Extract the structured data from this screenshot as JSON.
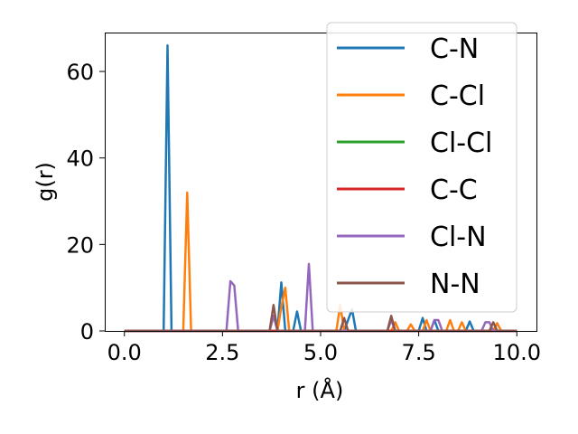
{
  "chart_data": {
    "type": "line",
    "xlabel": "r (Å)",
    "ylabel": "g(r)",
    "xlim": [
      -0.5,
      10.5
    ],
    "ylim": [
      0,
      69
    ],
    "xticks": [
      0.0,
      2.5,
      5.0,
      7.5,
      10.0
    ],
    "xtick_labels": [
      "0.0",
      "2.5",
      "5.0",
      "7.5",
      "10.0"
    ],
    "yticks": [
      0,
      20,
      40,
      60
    ],
    "ytick_labels": [
      "0",
      "20",
      "40",
      "60"
    ],
    "grid": false,
    "legend_position": "top-right",
    "series": [
      {
        "name": "C-N",
        "color": "#1f77b4",
        "points": [
          [
            0,
            0
          ],
          [
            1.0,
            0
          ],
          [
            1.1,
            66
          ],
          [
            1.2,
            0
          ],
          [
            3.9,
            0
          ],
          [
            4.0,
            11.2
          ],
          [
            4.1,
            0
          ],
          [
            4.3,
            0
          ],
          [
            4.4,
            4.5
          ],
          [
            4.5,
            0
          ],
          [
            5.6,
            0
          ],
          [
            5.7,
            2.5
          ],
          [
            5.8,
            5.0
          ],
          [
            5.9,
            0
          ],
          [
            7.5,
            0
          ],
          [
            7.6,
            3.0
          ],
          [
            7.7,
            0
          ],
          [
            7.8,
            0
          ],
          [
            7.9,
            2.5
          ],
          [
            8.0,
            0
          ],
          [
            8.7,
            0
          ],
          [
            8.8,
            2.2
          ],
          [
            8.9,
            0
          ],
          [
            10.0,
            0
          ]
        ]
      },
      {
        "name": "C-Cl",
        "color": "#ff7f0e",
        "points": [
          [
            0,
            0
          ],
          [
            1.5,
            0
          ],
          [
            1.6,
            32
          ],
          [
            1.7,
            0
          ],
          [
            3.9,
            0
          ],
          [
            4.0,
            5.5
          ],
          [
            4.1,
            10
          ],
          [
            4.2,
            0
          ],
          [
            5.4,
            0
          ],
          [
            5.5,
            6.0
          ],
          [
            5.6,
            0
          ],
          [
            6.8,
            0
          ],
          [
            6.9,
            2.0
          ],
          [
            7.0,
            0
          ],
          [
            7.2,
            0
          ],
          [
            7.3,
            1.5
          ],
          [
            7.4,
            0
          ],
          [
            7.6,
            0
          ],
          [
            7.7,
            2.5
          ],
          [
            7.8,
            0
          ],
          [
            8.2,
            0
          ],
          [
            8.3,
            2.5
          ],
          [
            8.4,
            0
          ],
          [
            8.5,
            0
          ],
          [
            8.6,
            2.0
          ],
          [
            8.7,
            0
          ],
          [
            9.4,
            0
          ],
          [
            9.5,
            1.8
          ],
          [
            9.6,
            0
          ],
          [
            10.0,
            0
          ]
        ]
      },
      {
        "name": "Cl-Cl",
        "color": "#2ca02c",
        "points": [
          [
            0,
            0
          ],
          [
            10.0,
            0
          ]
        ]
      },
      {
        "name": "C-C",
        "color": "#d62728",
        "points": [
          [
            0,
            0
          ],
          [
            10.0,
            0
          ]
        ]
      },
      {
        "name": "Cl-N",
        "color": "#9467bd",
        "points": [
          [
            0,
            0
          ],
          [
            2.6,
            0
          ],
          [
            2.7,
            11.5
          ],
          [
            2.8,
            10.5
          ],
          [
            2.9,
            0
          ],
          [
            3.7,
            0
          ],
          [
            3.8,
            3.5
          ],
          [
            3.9,
            0
          ],
          [
            4.6,
            0
          ],
          [
            4.7,
            15.5
          ],
          [
            4.8,
            0
          ],
          [
            6.7,
            0
          ],
          [
            6.8,
            2.5
          ],
          [
            6.9,
            0
          ],
          [
            7.8,
            0
          ],
          [
            7.9,
            2.5
          ],
          [
            8.0,
            2.5
          ],
          [
            8.1,
            0
          ],
          [
            9.1,
            0
          ],
          [
            9.2,
            2.0
          ],
          [
            9.3,
            2.0
          ],
          [
            9.4,
            0
          ],
          [
            10.0,
            0
          ]
        ]
      },
      {
        "name": "N-N",
        "color": "#8c564b",
        "points": [
          [
            0,
            0
          ],
          [
            3.7,
            0
          ],
          [
            3.8,
            6.0
          ],
          [
            3.9,
            0
          ],
          [
            5.5,
            0
          ],
          [
            5.6,
            3.0
          ],
          [
            5.7,
            0
          ],
          [
            6.7,
            0
          ],
          [
            6.8,
            3.5
          ],
          [
            6.9,
            0
          ],
          [
            9.3,
            0
          ],
          [
            9.4,
            2.0
          ],
          [
            9.5,
            0
          ],
          [
            10.0,
            0
          ]
        ]
      }
    ]
  }
}
